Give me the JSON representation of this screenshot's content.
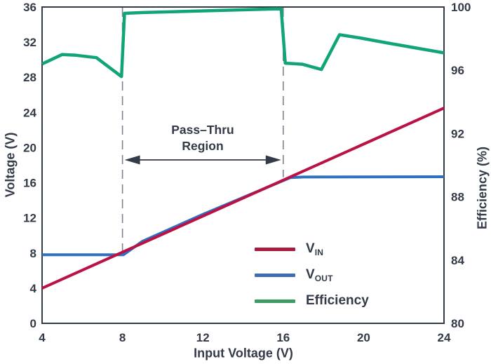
{
  "chart_data": {
    "type": "line",
    "title": "",
    "xlabel": "Input Voltage (V)",
    "ylabel_left": "Voltage (V)",
    "ylabel_right": "Efficiency (%)",
    "x_range": [
      4,
      24
    ],
    "x_ticks": [
      4,
      8,
      12,
      16,
      20,
      24
    ],
    "y_left_range": [
      0,
      36
    ],
    "y_left_ticks": [
      0,
      4,
      8,
      12,
      16,
      20,
      24,
      28,
      32,
      36
    ],
    "y_right_range": [
      80,
      100
    ],
    "y_right_ticks": [
      80,
      84,
      88,
      92,
      96,
      100
    ],
    "grid": false,
    "series": [
      {
        "name": "V_OUT",
        "axis": "left",
        "color": "#2f70bf",
        "width": 4,
        "points": [
          [
            4,
            7.8
          ],
          [
            8.05,
            7.8
          ],
          [
            9,
            9.35
          ],
          [
            12,
            12.4
          ],
          [
            14.5,
            14.8
          ],
          [
            16.35,
            16.58
          ],
          [
            17,
            16.65
          ],
          [
            24,
            16.68
          ]
        ]
      },
      {
        "name": "V_IN",
        "axis": "left",
        "color": "#bb1245",
        "width": 4,
        "points": [
          [
            4,
            4
          ],
          [
            24,
            24.5
          ]
        ]
      },
      {
        "name": "Efficiency",
        "axis": "right",
        "color": "#10a478",
        "width": 4.5,
        "points": [
          [
            4,
            96.4
          ],
          [
            5,
            97.0
          ],
          [
            5.7,
            96.95
          ],
          [
            6.7,
            96.8
          ],
          [
            7.95,
            95.6
          ],
          [
            8.1,
            99.6
          ],
          [
            9,
            99.65
          ],
          [
            15.55,
            99.88
          ],
          [
            15.9,
            99.88
          ],
          [
            16.1,
            96.45
          ],
          [
            16.5,
            96.42
          ],
          [
            16.95,
            96.38
          ],
          [
            17.9,
            96.05
          ],
          [
            18.8,
            98.25
          ],
          [
            19.8,
            98.05
          ],
          [
            21.3,
            97.7
          ],
          [
            24,
            97.1
          ]
        ]
      }
    ],
    "annotations": {
      "pass_thru_label_line1": "Pass–Thru",
      "pass_thru_label_line2": "Region",
      "region_x": [
        8,
        16
      ],
      "dash_bottom_left_axis": [
        7.8,
        16.62
      ],
      "arrow_y_left_axis": 18.6
    },
    "legend": [
      {
        "label_main": "V",
        "label_sub": "IN",
        "color": "#a81c3f"
      },
      {
        "label_main": "V",
        "label_sub": "OUT",
        "color": "#3e6db4"
      },
      {
        "label_main": "Efficiency",
        "label_sub": "",
        "color": "#3f9b64"
      }
    ],
    "colors": {
      "frame": "#333a48",
      "tick_text": "#333a48",
      "dash_line": "#7c8290",
      "arrow": "#333a48"
    }
  }
}
